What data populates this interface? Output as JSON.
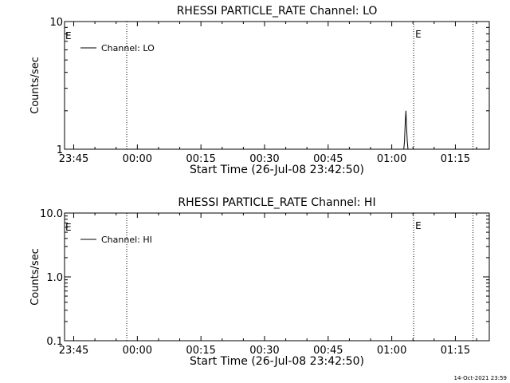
{
  "chart_data": [
    {
      "type": "line",
      "title": "RHESSI PARTICLE_RATE Channel: LO",
      "xlabel": "Start Time (26-Jul-08 23:42:50)",
      "ylabel": "Counts/sec",
      "y_scale": "log",
      "ylim": [
        1,
        10
      ],
      "xlim": [
        "23:42:50",
        "01:23:00"
      ],
      "x_ticks": [
        "23:45",
        "00:00",
        "00:15",
        "00:30",
        "00:45",
        "01:00",
        "01:15"
      ],
      "y_ticks": [
        "1",
        "10"
      ],
      "grid": false,
      "legend": {
        "position": "top-left",
        "entries": [
          "Channel: LO"
        ]
      },
      "vlines": [
        {
          "time": "23:57:30",
          "style": "dotted"
        },
        {
          "time": "01:05:10",
          "style": "dotted",
          "label": "E"
        },
        {
          "time": "01:19:10",
          "style": "dotted"
        }
      ],
      "left_marker": "E",
      "series": [
        {
          "name": "Channel: LO",
          "x": [
            "01:02:50",
            "01:03:00",
            "01:03:10",
            "01:03:20",
            "01:03:30",
            "01:03:40",
            "01:03:50"
          ],
          "y": [
            1.0,
            1.15,
            1.6,
            2.0,
            1.5,
            1.15,
            1.0
          ]
        }
      ]
    },
    {
      "type": "line",
      "title": "RHESSI PARTICLE_RATE Channel: HI",
      "xlabel": "Start Time (26-Jul-08 23:42:50)",
      "ylabel": "Counts/sec",
      "y_scale": "log",
      "ylim": [
        0.1,
        10
      ],
      "xlim": [
        "23:42:50",
        "01:23:00"
      ],
      "x_ticks": [
        "23:45",
        "00:00",
        "00:15",
        "00:30",
        "00:45",
        "01:00",
        "01:15"
      ],
      "y_ticks": [
        "0.1",
        "1.0",
        "10.0"
      ],
      "grid": false,
      "legend": {
        "position": "top-left",
        "entries": [
          "Channel: HI"
        ]
      },
      "vlines": [
        {
          "time": "23:57:30",
          "style": "dotted"
        },
        {
          "time": "01:05:10",
          "style": "dotted",
          "label": "E"
        },
        {
          "time": "01:19:10",
          "style": "dotted"
        }
      ],
      "left_marker": "E",
      "series": [
        {
          "name": "Channel: HI",
          "x": [],
          "y": []
        }
      ]
    }
  ],
  "footer": {
    "timestamp": "14-Oct-2021 23:59"
  }
}
